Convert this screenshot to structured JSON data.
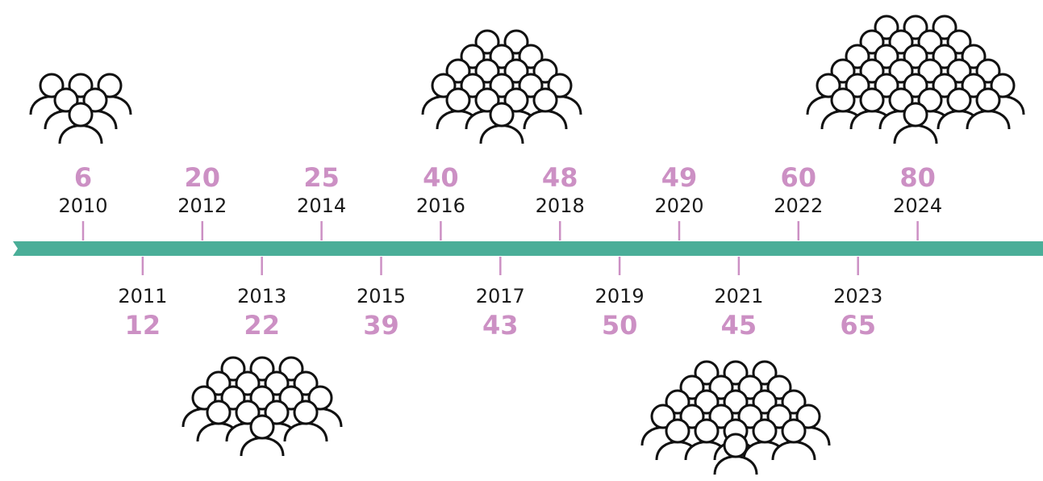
{
  "timeline": [
    {
      "year": "2010",
      "value": "6"
    },
    {
      "year": "2011",
      "value": "12"
    },
    {
      "year": "2012",
      "value": "20"
    },
    {
      "year": "2013",
      "value": "22"
    },
    {
      "year": "2014",
      "value": "25"
    },
    {
      "year": "2015",
      "value": "39"
    },
    {
      "year": "2016",
      "value": "40"
    },
    {
      "year": "2017",
      "value": "43"
    },
    {
      "year": "2018",
      "value": "48"
    },
    {
      "year": "2019",
      "value": "50"
    },
    {
      "year": "2020",
      "value": "49"
    },
    {
      "year": "2021",
      "value": "45"
    },
    {
      "year": "2022",
      "value": "60"
    },
    {
      "year": "2023",
      "value": "65"
    },
    {
      "year": "2024",
      "value": "80"
    }
  ]
}
